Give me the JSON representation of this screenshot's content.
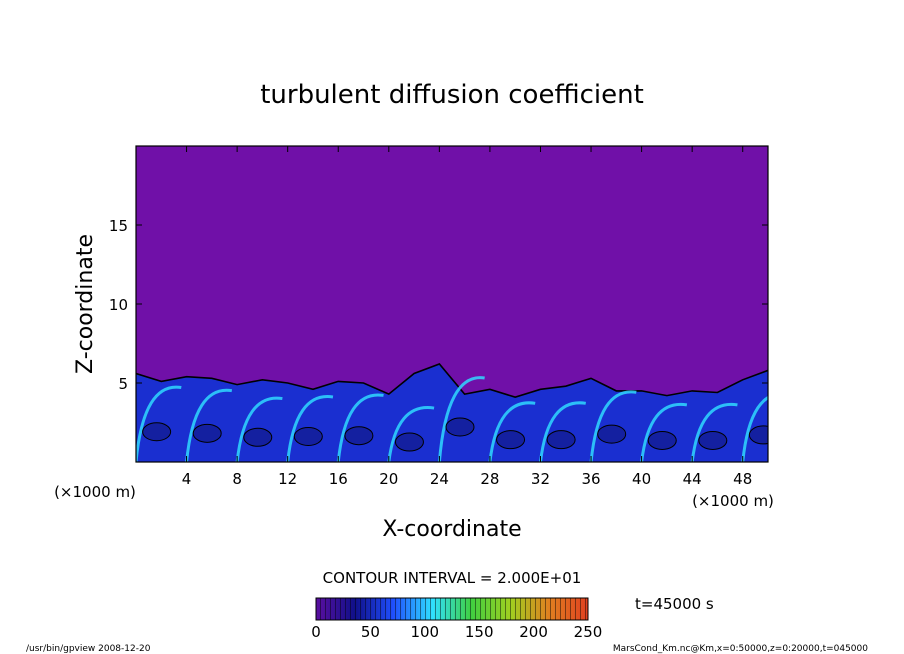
{
  "chart_data": {
    "type": "heatmap",
    "title": "turbulent diffusion coefficient",
    "xlabel": "X-coordinate",
    "ylabel": "Z-coordinate",
    "x_unit": "(×1000 m)",
    "y_unit": "(×1000 m)",
    "xlim": [
      0,
      50
    ],
    "ylim": [
      0,
      20
    ],
    "xticks": [
      4,
      8,
      12,
      16,
      20,
      24,
      28,
      32,
      36,
      40,
      44,
      48
    ],
    "yticks": [
      5,
      10,
      15
    ],
    "contour_interval_text": "CONTOUR INTERVAL = 2.000E+01",
    "time_label": "t=45000 s",
    "colorbar": {
      "min": 0,
      "max": 250,
      "ticks": [
        0,
        50,
        100,
        150,
        200,
        250
      ],
      "colors": [
        "#5a0fa0",
        "#10108a",
        "#2050ff",
        "#30e0ff",
        "#40d040",
        "#a0d020",
        "#e08020",
        "#e04020"
      ]
    },
    "background_color": "#7010a8",
    "boundary_layer": {
      "x": [
        0,
        2,
        4,
        6,
        8,
        10,
        12,
        14,
        16,
        18,
        20,
        22,
        24,
        26,
        28,
        30,
        32,
        34,
        36,
        38,
        40,
        42,
        44,
        46,
        48,
        50
      ],
      "top_z": [
        5.6,
        5.1,
        5.4,
        5.3,
        4.9,
        5.2,
        5.0,
        4.6,
        5.1,
        5.0,
        4.3,
        5.6,
        6.2,
        4.3,
        4.6,
        4.1,
        4.6,
        4.8,
        5.3,
        4.5,
        4.5,
        4.2,
        4.5,
        4.4,
        5.2,
        5.8
      ]
    }
  },
  "footer": {
    "left": "/usr/bin/gpview  2008-12-20",
    "right": "MarsCond_Km.nc@Km,x=0:50000,z=0:20000,t=045000"
  }
}
